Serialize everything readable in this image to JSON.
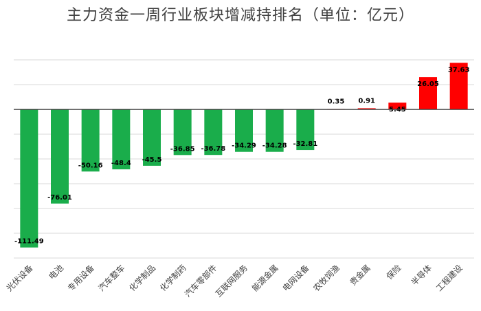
{
  "chart_data": {
    "type": "bar",
    "title": "主力资金一周行业板块增减持排名（单位：亿元）",
    "xlabel": "",
    "ylabel": "",
    "grid": true,
    "legend": "none",
    "categories": [
      "光伏设备",
      "电池",
      "专用设备",
      "汽车整车",
      "化学制品",
      "化学制药",
      "汽车零部件",
      "互联网服务",
      "能源金属",
      "电网设备",
      "农牧饲渔",
      "贵金属",
      "保险",
      "半导体",
      "工程建设"
    ],
    "values": [
      -111.49,
      -76.01,
      -50.16,
      -48.4,
      -45.5,
      -36.85,
      -36.78,
      -34.29,
      -34.28,
      -32.81,
      0.35,
      0.91,
      5.45,
      26.05,
      37.63
    ],
    "ylim": [
      -120,
      40
    ],
    "colors": {
      "negative": "#1aad4b",
      "positive": "#ff0000",
      "grid": "#d9d9d9",
      "axis": "#404040",
      "text": "#404040"
    }
  }
}
